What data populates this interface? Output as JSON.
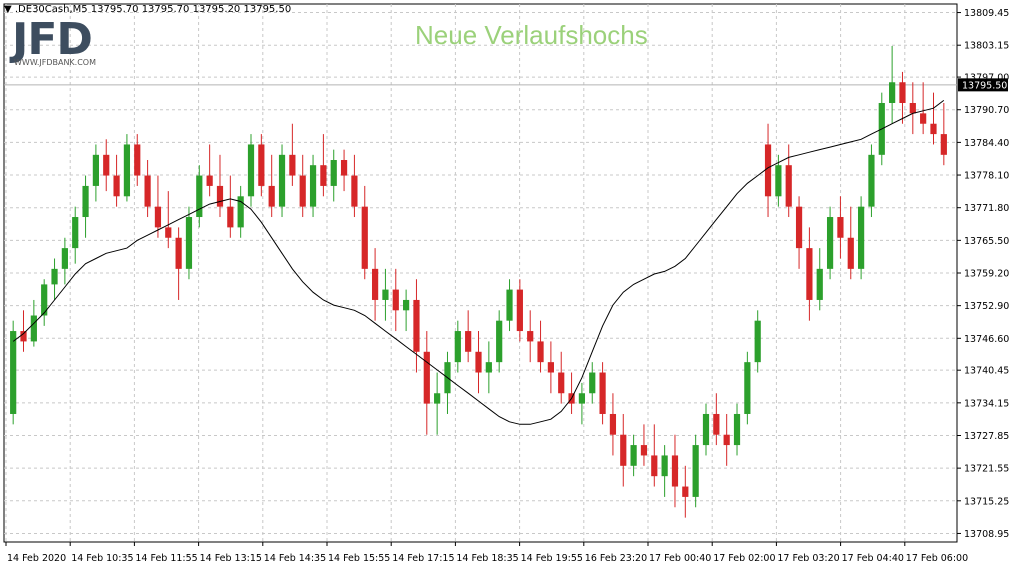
{
  "header": {
    "symbol_line": "▼ .DE30Cash,M5  13795.70 13795.70 13795.20 13795.50"
  },
  "logo": {
    "text": "JFD",
    "url_text": "WWW.JFDBANK.COM"
  },
  "annotation": {
    "text": "Neue Verlaufshochs",
    "color": "#9bd17a",
    "highlight_color": "#e2f2d6"
  },
  "colors": {
    "bull": "#2ca02c",
    "bear": "#d62728",
    "ma": "#000000",
    "grid": "#c8c8c8",
    "axis": "#000000",
    "current_price_bg": "#000000",
    "current_price_fg": "#ffffff"
  },
  "chart_data": {
    "type": "candlestick",
    "yaxis_ticks": [
      "13809.45",
      "13803.15",
      "13797.00",
      "13790.70",
      "13784.40",
      "13778.10",
      "13771.80",
      "13765.50",
      "13759.20",
      "13752.90",
      "13746.60",
      "13740.45",
      "13734.15",
      "13727.85",
      "13721.55",
      "13715.25",
      "13708.95"
    ],
    "ylim": [
      13707.3,
      13811.1
    ],
    "xaxis_ticks": [
      "14 Feb 2020",
      "14 Feb 10:35",
      "14 Feb 11:55",
      "14 Feb 13:15",
      "14 Feb 14:35",
      "14 Feb 15:55",
      "14 Feb 17:15",
      "14 Feb 18:35",
      "14 Feb 19:55",
      "16 Feb 23:20",
      "17 Feb 00:40",
      "17 Feb 02:00",
      "17 Feb 03:20",
      "17 Feb 04:40",
      "17 Feb 06:00"
    ],
    "current_price": "13795.50",
    "highlight_zone": {
      "y_low": 13797.5,
      "y_high": 13809.5,
      "bar_start": 169,
      "bar_end": 237
    },
    "ma_series": [
      13746.0,
      13747.5,
      13749.5,
      13751.5,
      13754.0,
      13756.5,
      13759.0,
      13761.0,
      13762.0,
      13763.0,
      13763.5,
      13764.0,
      13765.5,
      13766.5,
      13767.5,
      13768.5,
      13769.5,
      13770.5,
      13771.5,
      13772.5,
      13773.0,
      13773.5,
      13773.0,
      13771.5,
      13769.0,
      13766.0,
      13763.0,
      13760.0,
      13757.5,
      13755.5,
      13754.0,
      13753.0,
      13752.5,
      13752.0,
      13751.0,
      13749.5,
      13748.0,
      13746.5,
      13745.0,
      13743.5,
      13742.0,
      13740.5,
      13739.0,
      13737.5,
      13736.0,
      13734.5,
      13733.0,
      13731.5,
      13730.5,
      13730.0,
      13730.0,
      13730.5,
      13731.0,
      13732.5,
      13735.0,
      13739.0,
      13744.0,
      13749.0,
      13753.0,
      13755.5,
      13757.0,
      13758.0,
      13759.0,
      13759.5,
      13760.5,
      13762.0,
      13764.5,
      13767.0,
      13769.5,
      13772.0,
      13774.5,
      13776.5,
      13778.0,
      13779.5,
      13780.5,
      13781.5,
      13782.0,
      13782.5,
      13783.0,
      13783.5,
      13784.0,
      13784.5,
      13785.0,
      13786.0,
      13787.0,
      13788.0,
      13789.0,
      13790.0,
      13790.5,
      13791.0,
      13792.5
    ],
    "candles": [
      {
        "o": 13732.0,
        "h": 13750.0,
        "l": 13730.0,
        "c": 13748.0
      },
      {
        "o": 13748.0,
        "h": 13752.0,
        "l": 13744.0,
        "c": 13746.0
      },
      {
        "o": 13746.0,
        "h": 13754.0,
        "l": 13745.0,
        "c": 13751.0
      },
      {
        "o": 13751.0,
        "h": 13758.0,
        "l": 13749.0,
        "c": 13757.0
      },
      {
        "o": 13757.0,
        "h": 13762.0,
        "l": 13754.0,
        "c": 13760.0
      },
      {
        "o": 13760.0,
        "h": 13766.0,
        "l": 13757.0,
        "c": 13764.0
      },
      {
        "o": 13764.0,
        "h": 13772.0,
        "l": 13761.0,
        "c": 13770.0
      },
      {
        "o": 13770.0,
        "h": 13778.0,
        "l": 13766.0,
        "c": 13776.0
      },
      {
        "o": 13776.0,
        "h": 13784.0,
        "l": 13773.0,
        "c": 13782.0
      },
      {
        "o": 13782.0,
        "h": 13785.0,
        "l": 13775.0,
        "c": 13778.0
      },
      {
        "o": 13778.0,
        "h": 13782.0,
        "l": 13772.0,
        "c": 13774.0
      },
      {
        "o": 13774.0,
        "h": 13786.0,
        "l": 13773.0,
        "c": 13784.0
      },
      {
        "o": 13784.0,
        "h": 13786.0,
        "l": 13776.0,
        "c": 13778.0
      },
      {
        "o": 13778.0,
        "h": 13781.0,
        "l": 13770.0,
        "c": 13772.0
      },
      {
        "o": 13772.0,
        "h": 13778.0,
        "l": 13766.0,
        "c": 13768.0
      },
      {
        "o": 13768.0,
        "h": 13775.0,
        "l": 13764.0,
        "c": 13766.0
      },
      {
        "o": 13766.0,
        "h": 13768.0,
        "l": 13754.0,
        "c": 13760.0
      },
      {
        "o": 13760.0,
        "h": 13772.0,
        "l": 13758.0,
        "c": 13770.0
      },
      {
        "o": 13770.0,
        "h": 13780.0,
        "l": 13768.0,
        "c": 13778.0
      },
      {
        "o": 13778.0,
        "h": 13784.0,
        "l": 13774.0,
        "c": 13776.0
      },
      {
        "o": 13776.0,
        "h": 13782.0,
        "l": 13770.0,
        "c": 13772.0
      },
      {
        "o": 13772.0,
        "h": 13778.0,
        "l": 13766.0,
        "c": 13768.0
      },
      {
        "o": 13768.0,
        "h": 13776.0,
        "l": 13766.0,
        "c": 13774.0
      },
      {
        "o": 13774.0,
        "h": 13786.0,
        "l": 13772.0,
        "c": 13784.0
      },
      {
        "o": 13784.0,
        "h": 13786.0,
        "l": 13774.0,
        "c": 13776.0
      },
      {
        "o": 13776.0,
        "h": 13782.0,
        "l": 13770.0,
        "c": 13772.0
      },
      {
        "o": 13772.0,
        "h": 13784.0,
        "l": 13770.0,
        "c": 13782.0
      },
      {
        "o": 13782.0,
        "h": 13788.0,
        "l": 13776.0,
        "c": 13778.0
      },
      {
        "o": 13778.0,
        "h": 13782.0,
        "l": 13770.0,
        "c": 13772.0
      },
      {
        "o": 13772.0,
        "h": 13782.0,
        "l": 13770.0,
        "c": 13780.0
      },
      {
        "o": 13780.0,
        "h": 13786.0,
        "l": 13774.0,
        "c": 13776.0
      },
      {
        "o": 13776.0,
        "h": 13783.0,
        "l": 13773.0,
        "c": 13781.0
      },
      {
        "o": 13781.0,
        "h": 13783.0,
        "l": 13775.0,
        "c": 13778.0
      },
      {
        "o": 13778.0,
        "h": 13782.0,
        "l": 13770.0,
        "c": 13772.0
      },
      {
        "o": 13772.0,
        "h": 13776.0,
        "l": 13758.0,
        "c": 13760.0
      },
      {
        "o": 13760.0,
        "h": 13764.0,
        "l": 13750.0,
        "c": 13754.0
      },
      {
        "o": 13754.0,
        "h": 13760.0,
        "l": 13750.0,
        "c": 13756.0
      },
      {
        "o": 13756.0,
        "h": 13760.0,
        "l": 13748.0,
        "c": 13752.0
      },
      {
        "o": 13752.0,
        "h": 13756.0,
        "l": 13748.0,
        "c": 13754.0
      },
      {
        "o": 13754.0,
        "h": 13758.0,
        "l": 13740.0,
        "c": 13744.0
      },
      {
        "o": 13744.0,
        "h": 13748.0,
        "l": 13728.0,
        "c": 13734.0
      },
      {
        "o": 13734.0,
        "h": 13740.0,
        "l": 13728.0,
        "c": 13736.0
      },
      {
        "o": 13736.0,
        "h": 13744.0,
        "l": 13732.0,
        "c": 13742.0
      },
      {
        "o": 13742.0,
        "h": 13750.0,
        "l": 13740.0,
        "c": 13748.0
      },
      {
        "o": 13748.0,
        "h": 13752.0,
        "l": 13742.0,
        "c": 13744.0
      },
      {
        "o": 13744.0,
        "h": 13748.0,
        "l": 13736.0,
        "c": 13740.0
      },
      {
        "o": 13740.0,
        "h": 13746.0,
        "l": 13736.0,
        "c": 13742.0
      },
      {
        "o": 13742.0,
        "h": 13752.0,
        "l": 13740.0,
        "c": 13750.0
      },
      {
        "o": 13750.0,
        "h": 13758.0,
        "l": 13748.0,
        "c": 13756.0
      },
      {
        "o": 13756.0,
        "h": 13758.0,
        "l": 13746.0,
        "c": 13748.0
      },
      {
        "o": 13748.0,
        "h": 13752.0,
        "l": 13742.0,
        "c": 13746.0
      },
      {
        "o": 13746.0,
        "h": 13750.0,
        "l": 13740.0,
        "c": 13742.0
      },
      {
        "o": 13742.0,
        "h": 13746.0,
        "l": 13736.0,
        "c": 13740.0
      },
      {
        "o": 13740.0,
        "h": 13744.0,
        "l": 13734.0,
        "c": 13736.0
      },
      {
        "o": 13736.0,
        "h": 13740.0,
        "l": 13732.0,
        "c": 13734.0
      },
      {
        "o": 13734.0,
        "h": 13738.0,
        "l": 13730.0,
        "c": 13736.0
      },
      {
        "o": 13736.0,
        "h": 13742.0,
        "l": 13734.0,
        "c": 13740.0
      },
      {
        "o": 13740.0,
        "h": 13742.0,
        "l": 13730.0,
        "c": 13732.0
      },
      {
        "o": 13732.0,
        "h": 13736.0,
        "l": 13724.0,
        "c": 13728.0
      },
      {
        "o": 13728.0,
        "h": 13732.0,
        "l": 13718.0,
        "c": 13722.0
      },
      {
        "o": 13722.0,
        "h": 13728.0,
        "l": 13720.0,
        "c": 13726.0
      },
      {
        "o": 13726.0,
        "h": 13730.0,
        "l": 13722.0,
        "c": 13724.0
      },
      {
        "o": 13724.0,
        "h": 13730.0,
        "l": 13718.0,
        "c": 13720.0
      },
      {
        "o": 13720.0,
        "h": 13726.0,
        "l": 13716.0,
        "c": 13724.0
      },
      {
        "o": 13724.0,
        "h": 13728.0,
        "l": 13714.0,
        "c": 13718.0
      },
      {
        "o": 13718.0,
        "h": 13722.0,
        "l": 13712.0,
        "c": 13716.0
      },
      {
        "o": 13716.0,
        "h": 13728.0,
        "l": 13714.0,
        "c": 13726.0
      },
      {
        "o": 13726.0,
        "h": 13734.0,
        "l": 13724.0,
        "c": 13732.0
      },
      {
        "o": 13732.0,
        "h": 13736.0,
        "l": 13726.0,
        "c": 13728.0
      },
      {
        "o": 13728.0,
        "h": 13732.0,
        "l": 13722.0,
        "c": 13726.0
      },
      {
        "o": 13726.0,
        "h": 13734.0,
        "l": 13724.0,
        "c": 13732.0
      },
      {
        "o": 13732.0,
        "h": 13744.0,
        "l": 13730.0,
        "c": 13742.0
      },
      {
        "o": 13742.0,
        "h": 13752.0,
        "l": 13740.0,
        "c": 13750.0
      },
      {
        "o": 13784.0,
        "h": 13788.0,
        "l": 13770.0,
        "c": 13774.0
      },
      {
        "o": 13774.0,
        "h": 13782.0,
        "l": 13772.0,
        "c": 13780.0
      },
      {
        "o": 13780.0,
        "h": 13784.0,
        "l": 13770.0,
        "c": 13772.0
      },
      {
        "o": 13772.0,
        "h": 13774.0,
        "l": 13760.0,
        "c": 13764.0
      },
      {
        "o": 13764.0,
        "h": 13768.0,
        "l": 13750.0,
        "c": 13754.0
      },
      {
        "o": 13754.0,
        "h": 13764.0,
        "l": 13752.0,
        "c": 13760.0
      },
      {
        "o": 13760.0,
        "h": 13772.0,
        "l": 13758.0,
        "c": 13770.0
      },
      {
        "o": 13770.0,
        "h": 13774.0,
        "l": 13762.0,
        "c": 13766.0
      },
      {
        "o": 13766.0,
        "h": 13772.0,
        "l": 13758.0,
        "c": 13760.0
      },
      {
        "o": 13760.0,
        "h": 13774.0,
        "l": 13758.0,
        "c": 13772.0
      },
      {
        "o": 13772.0,
        "h": 13784.0,
        "l": 13770.0,
        "c": 13782.0
      },
      {
        "o": 13782.0,
        "h": 13794.0,
        "l": 13780.0,
        "c": 13792.0
      },
      {
        "o": 13792.0,
        "h": 13803.0,
        "l": 13788.0,
        "c": 13796.0
      },
      {
        "o": 13796.0,
        "h": 13798.0,
        "l": 13788.0,
        "c": 13792.0
      },
      {
        "o": 13792.0,
        "h": 13796.0,
        "l": 13786.0,
        "c": 13790.0
      },
      {
        "o": 13790.0,
        "h": 13796.0,
        "l": 13786.0,
        "c": 13788.0
      },
      {
        "o": 13788.0,
        "h": 13794.0,
        "l": 13784.0,
        "c": 13786.0
      },
      {
        "o": 13786.0,
        "h": 13792.0,
        "l": 13780.0,
        "c": 13782.0
      }
    ]
  }
}
